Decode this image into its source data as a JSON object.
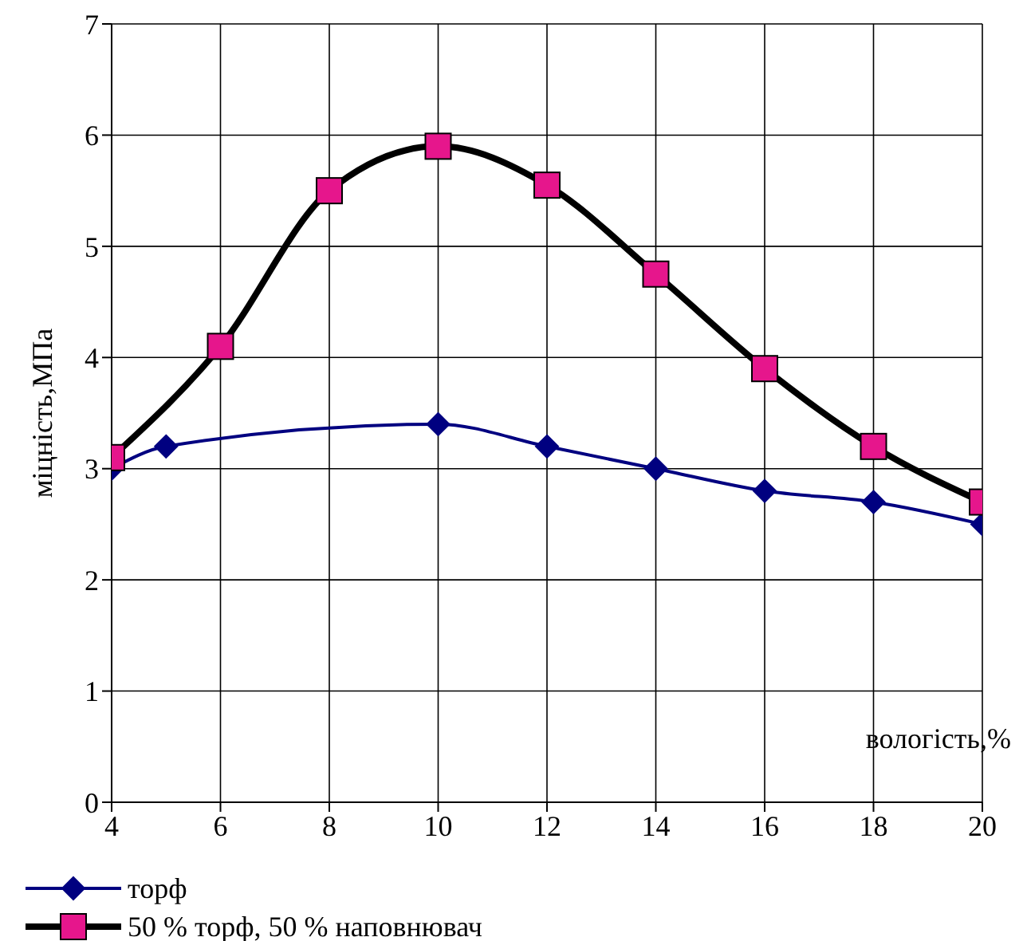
{
  "chart_data": {
    "type": "line",
    "xlabel": "вологість,%",
    "ylabel": "міцність,МПа",
    "xlim": [
      4,
      20
    ],
    "xticks": [
      4,
      6,
      8,
      10,
      12,
      14,
      16,
      18,
      20
    ],
    "ylim": [
      0,
      7
    ],
    "yticks": [
      0,
      1,
      2,
      3,
      4,
      5,
      6,
      7
    ],
    "grid": true,
    "legend": "bottom left",
    "series": [
      {
        "name": "торф",
        "color": "#000080",
        "marker": "diamond",
        "x": [
          4,
          5,
          10,
          12,
          14,
          16,
          18,
          20
        ],
        "values": [
          3.0,
          3.2,
          3.4,
          3.2,
          3.0,
          2.8,
          2.7,
          2.5
        ]
      },
      {
        "name": "50 % торф, 50 % наповнювач",
        "color": "#000000",
        "marker": "square",
        "x": [
          4,
          6,
          8,
          10,
          12,
          14,
          16,
          18,
          20
        ],
        "values": [
          3.1,
          4.1,
          5.5,
          5.9,
          5.55,
          4.75,
          3.9,
          3.2,
          2.7
        ]
      }
    ]
  }
}
